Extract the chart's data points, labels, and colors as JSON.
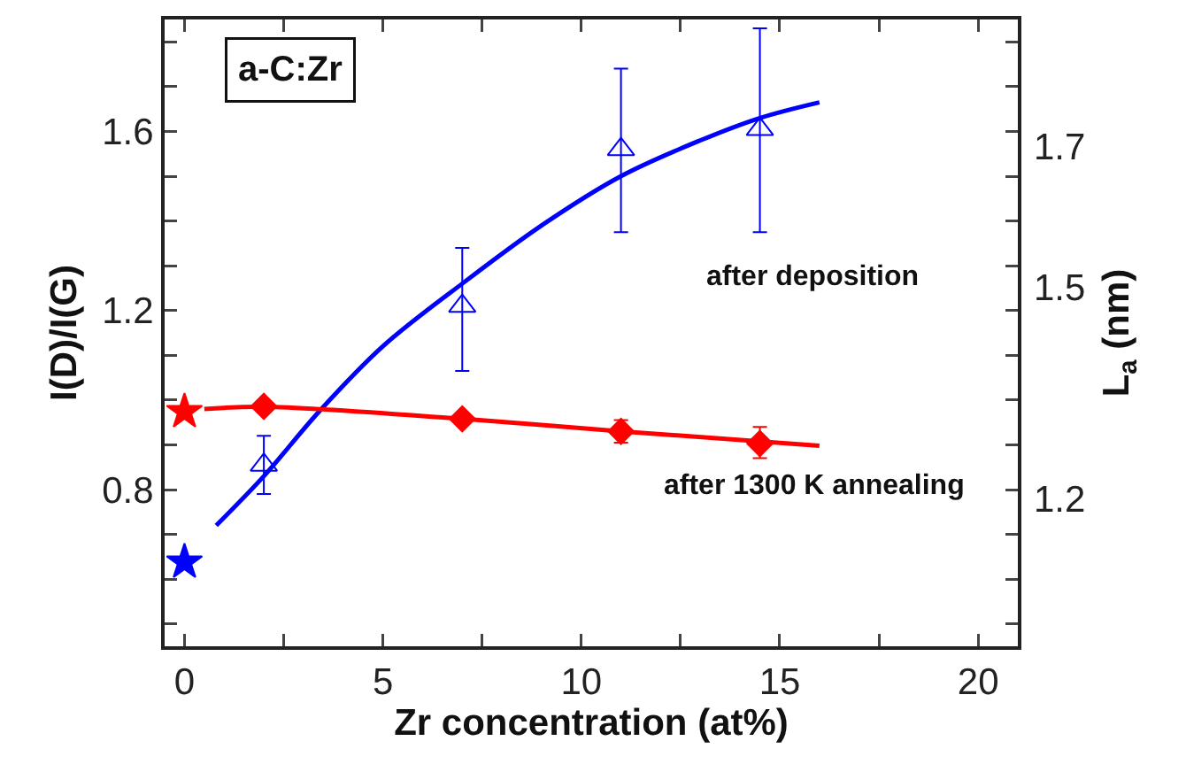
{
  "chart_data": {
    "type": "scatter",
    "xlabel": "Zr concentration (at%)",
    "ylabel": "I(D)/I(G)",
    "y2label": "L$_{a}$ (nm)",
    "xlim": [
      -0.5,
      21
    ],
    "ylim": [
      0.45,
      1.85
    ],
    "y2lim": [
      0.99,
      1.88
    ],
    "xticks": [
      0,
      {
        "value": 2.5,
        "label": null
      },
      5,
      {
        "value": 7.5,
        "label": null
      },
      10,
      {
        "value": 12.5,
        "label": null
      },
      15,
      {
        "value": 17.5,
        "label": null
      },
      20
    ],
    "yticks": [
      {
        "value": 0.5,
        "label": null
      },
      {
        "value": 0.6,
        "label": null
      },
      {
        "value": 0.7,
        "label": null
      },
      {
        "value": 0.8,
        "label": "0.8"
      },
      {
        "value": 0.9,
        "label": null
      },
      {
        "value": 1.0,
        "label": null
      },
      {
        "value": 1.1,
        "label": null
      },
      {
        "value": 1.2,
        "label": "1.2"
      },
      {
        "value": 1.3,
        "label": null
      },
      {
        "value": 1.4,
        "label": null
      },
      {
        "value": 1.5,
        "label": null
      },
      {
        "value": 1.6,
        "label": "1.6"
      },
      {
        "value": 1.7,
        "label": null
      },
      {
        "value": 1.8,
        "label": null
      }
    ],
    "y2ticks": [
      1.2,
      1.5,
      1.7
    ],
    "grid": false,
    "series": [
      {
        "type": "line",
        "color": "#0000ff",
        "x": [
          0.8,
          2,
          3.4,
          5,
          7,
          9,
          11,
          13,
          14.5,
          16
        ],
        "values": [
          0.72,
          0.83,
          0.975,
          1.12,
          1.26,
          1.39,
          1.5,
          1.58,
          1.63,
          1.665
        ]
      },
      {
        "type": "line",
        "color": "#ff0000",
        "x": [
          0.5,
          2,
          7,
          11,
          16
        ],
        "values": [
          0.98,
          0.985,
          0.958,
          0.93,
          0.898
        ]
      },
      {
        "color": "#0000ff",
        "marker": "triangle",
        "x": [
          2,
          7,
          11,
          14.5
        ],
        "values": [
          0.855,
          1.21,
          1.56,
          1.605
        ],
        "errors": [
          [
            0.79,
            0.92
          ],
          [
            1.065,
            1.34
          ],
          [
            1.375,
            1.74
          ],
          [
            1.375,
            1.83
          ]
        ]
      },
      {
        "color": "#ff0000",
        "marker": "diamond",
        "x": [
          2,
          7,
          11,
          14.5
        ],
        "values": [
          0.986,
          0.958,
          0.93,
          0.903
        ],
        "errors": [
          null,
          null,
          0.025,
          [
            0.87,
            0.94
          ]
        ]
      },
      {
        "color": "#0000ff",
        "marker": "star",
        "x": [
          0
        ],
        "values": [
          0.638
        ]
      },
      {
        "color": "#ff0000",
        "marker": "star",
        "x": [
          0
        ],
        "values": [
          0.974
        ]
      }
    ],
    "annotations": [
      "a-C:Zr",
      "after deposition",
      "after 1300 K annealing"
    ]
  }
}
